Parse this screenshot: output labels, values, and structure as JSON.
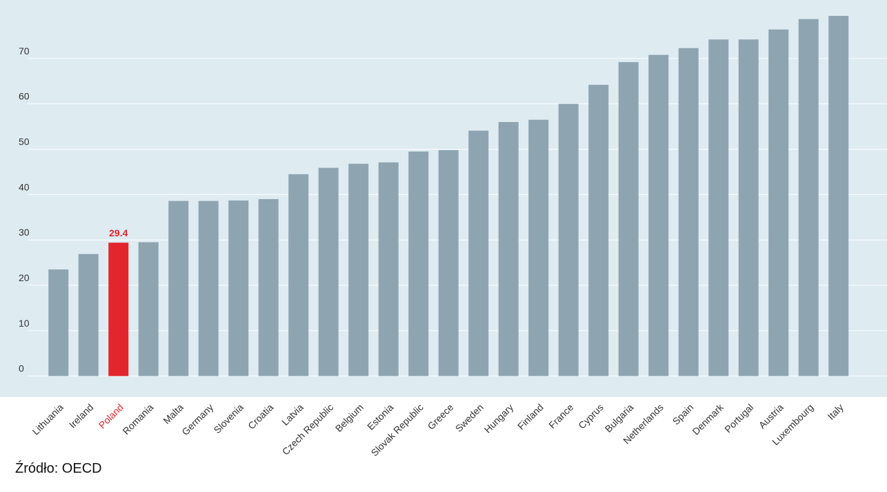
{
  "chart_data": {
    "type": "bar",
    "categories": [
      "Lithuania",
      "Ireland",
      "Poland",
      "Romania",
      "Malta",
      "Germany",
      "Slovenia",
      "Croatia",
      "Latvia",
      "Czech Republic",
      "Belgium",
      "Estonia",
      "Slovak Republic",
      "Greece",
      "Sweden",
      "Hungary",
      "Finland",
      "France",
      "Cyprus",
      "Bulgaria",
      "Netherlands",
      "Spain",
      "Denmark",
      "Portugal",
      "Austria",
      "Luxembourg",
      "Italy"
    ],
    "values": [
      23.5,
      26.9,
      29.4,
      29.5,
      38.6,
      38.6,
      38.7,
      39.0,
      44.5,
      45.9,
      46.8,
      47.1,
      49.5,
      49.8,
      54.1,
      56.0,
      56.5,
      60.0,
      64.2,
      69.2,
      70.8,
      72.3,
      74.2,
      74.2,
      76.4,
      78.7,
      79.4
    ],
    "value_labels": [
      null,
      null,
      "29.4",
      null,
      null,
      null,
      null,
      null,
      null,
      null,
      null,
      null,
      null,
      null,
      null,
      null,
      null,
      null,
      null,
      null,
      null,
      null,
      null,
      null,
      null,
      null,
      null
    ],
    "color": "#8ea4b1",
    "colors": [
      "#8ea4b1",
      "#8ea4b1",
      "#e3262e",
      "#8ea4b1",
      "#8ea4b1",
      "#8ea4b1",
      "#8ea4b1",
      "#8ea4b1",
      "#8ea4b1",
      "#8ea4b1",
      "#8ea4b1",
      "#8ea4b1",
      "#8ea4b1",
      "#8ea4b1",
      "#8ea4b1",
      "#8ea4b1",
      "#8ea4b1",
      "#8ea4b1",
      "#8ea4b1",
      "#8ea4b1",
      "#8ea4b1",
      "#8ea4b1",
      "#8ea4b1",
      "#8ea4b1",
      "#8ea4b1",
      "#8ea4b1",
      "#8ea4b1"
    ],
    "ylim": [
      -4.6,
      82.9
    ],
    "yticks": [
      0,
      10,
      20,
      30,
      40,
      50,
      60,
      70
    ],
    "grid": true,
    "source": "Źródło: OECD"
  }
}
